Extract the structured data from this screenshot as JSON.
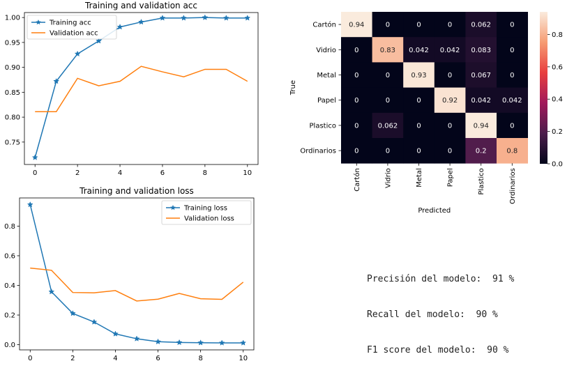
{
  "chart_data": [
    {
      "type": "line",
      "title": "Training and validation acc",
      "xlabel": "",
      "ylabel": "",
      "x": [
        0,
        1,
        2,
        3,
        4,
        5,
        6,
        7,
        8,
        9,
        10
      ],
      "xlim": [
        -0.5,
        10.5
      ],
      "ylim": [
        0.705,
        1.01
      ],
      "xticks": [
        0,
        2,
        4,
        6,
        8,
        10
      ],
      "yticks": [
        0.75,
        0.8,
        0.85,
        0.9,
        0.95,
        1.0
      ],
      "legend_position": "top-left",
      "grid": false,
      "series": [
        {
          "name": "Training acc",
          "color": "#1f77b4",
          "marker": "star",
          "values": [
            0.719,
            0.872,
            0.927,
            0.953,
            0.981,
            0.991,
            0.999,
            0.999,
            1.0,
            0.999,
            0.999
          ]
        },
        {
          "name": "Validation acc",
          "color": "#ff7f0e",
          "marker": "none",
          "values": [
            0.811,
            0.811,
            0.878,
            0.863,
            0.872,
            0.902,
            0.891,
            0.881,
            0.896,
            0.896,
            0.872
          ]
        }
      ]
    },
    {
      "type": "line",
      "title": "Training and validation loss",
      "xlabel": "",
      "ylabel": "",
      "x": [
        0,
        1,
        2,
        3,
        4,
        5,
        6,
        7,
        8,
        9,
        10
      ],
      "xlim": [
        -0.5,
        10.5
      ],
      "ylim": [
        -0.035,
        0.99
      ],
      "xticks": [
        0,
        2,
        4,
        6,
        8,
        10
      ],
      "yticks": [
        0.0,
        0.2,
        0.4,
        0.6,
        0.8
      ],
      "legend_position": "top-right",
      "grid": false,
      "series": [
        {
          "name": "Training loss",
          "color": "#1f77b4",
          "marker": "star",
          "values": [
            0.945,
            0.357,
            0.211,
            0.153,
            0.073,
            0.04,
            0.02,
            0.015,
            0.013,
            0.012,
            0.012
          ]
        },
        {
          "name": "Validation loss",
          "color": "#ff7f0e",
          "marker": "none",
          "values": [
            0.517,
            0.502,
            0.352,
            0.35,
            0.365,
            0.295,
            0.307,
            0.346,
            0.31,
            0.306,
            0.422
          ]
        }
      ]
    },
    {
      "type": "heatmap",
      "title": "",
      "xlabel": "Predicted",
      "ylabel": "True",
      "row_labels": [
        "Cartón",
        "Vidrio",
        "Metal",
        "Papel",
        "Plastico",
        "Ordinarios"
      ],
      "col_labels": [
        "Cartón",
        "Vidrio",
        "Metal",
        "Papel",
        "Plastico",
        "Ordinarios"
      ],
      "values": [
        [
          0.94,
          0,
          0,
          0,
          0.062,
          0
        ],
        [
          0,
          0.83,
          0.042,
          0.042,
          0.083,
          0
        ],
        [
          0,
          0,
          0.93,
          0,
          0.067,
          0
        ],
        [
          0,
          0,
          0,
          0.92,
          0.042,
          0.042
        ],
        [
          0,
          0.062,
          0,
          0,
          0.94,
          0
        ],
        [
          0,
          0,
          0,
          0,
          0.2,
          0.8
        ]
      ],
      "cell_text": [
        [
          "0.94",
          "0",
          "0",
          "0",
          "0.062",
          "0"
        ],
        [
          "0",
          "0.83",
          "0.042",
          "0.042",
          "0.083",
          "0"
        ],
        [
          "0",
          "0",
          "0.93",
          "0",
          "0.067",
          "0"
        ],
        [
          "0",
          "0",
          "0",
          "0.92",
          "0.042",
          "0.042"
        ],
        [
          "0",
          "0.062",
          "0",
          "0",
          "0.94",
          "0"
        ],
        [
          "0",
          "0",
          "0",
          "0",
          "0.2",
          "0.8"
        ]
      ],
      "colorbar": {
        "range": [
          0,
          0.94
        ],
        "ticks": [
          "0.0",
          "0.2",
          "0.4",
          "0.6",
          "0.8"
        ],
        "tick_values": [
          0,
          0.2,
          0.4,
          0.6,
          0.8
        ]
      },
      "colormap": "rocket"
    }
  ],
  "metrics": {
    "precision": "Precisión del modelo:  91 %",
    "recall": "Recall del modelo:  90 %",
    "f1": "F1 score del modelo:  90 %"
  }
}
